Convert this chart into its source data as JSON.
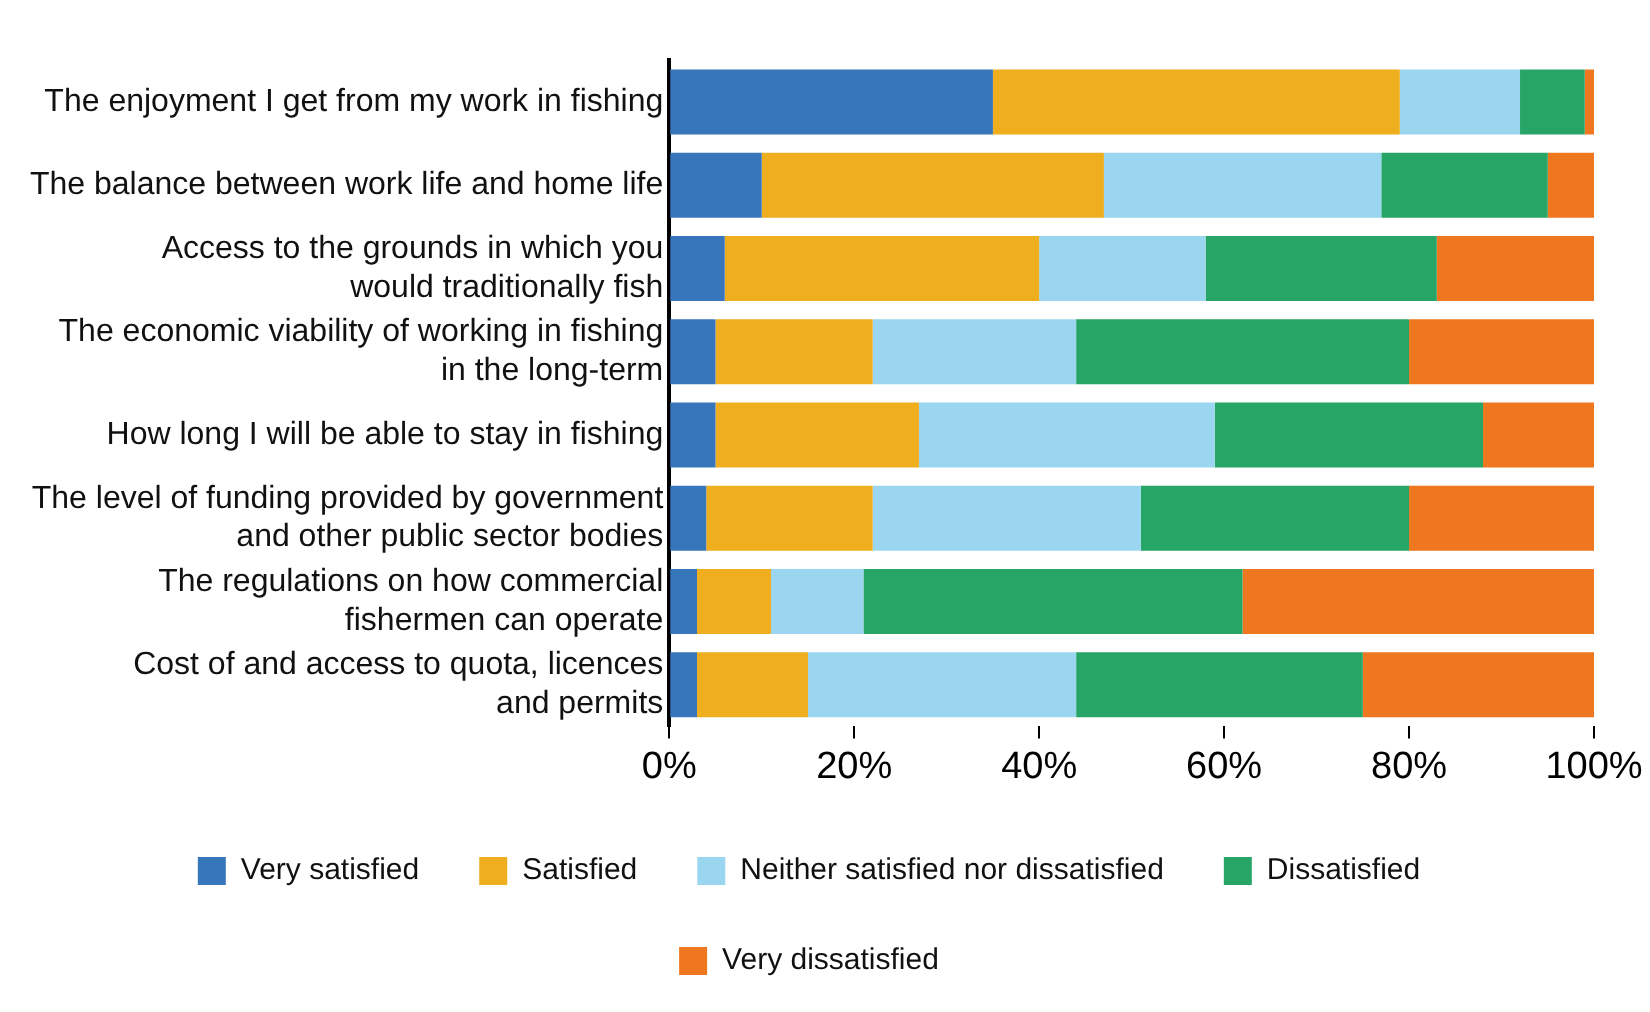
{
  "chart_data": {
    "type": "bar",
    "orientation": "horizontal",
    "stacked": true,
    "categories": [
      "The enjoyment I get from my work in fishing",
      "The balance between work life and home life",
      "Access to the grounds in which you\nwould traditionally fish",
      "The economic viability of working in fishing\nin the long-term",
      "How long I will be able to stay in fishing",
      "The level of funding provided by government\nand other public sector bodies",
      "The regulations on how commercial\nfishermen can operate",
      "Cost of and access to quota, licences\nand permits"
    ],
    "series": [
      {
        "name": "Very satisfied",
        "color": "#3776bb",
        "values": [
          35,
          10,
          6,
          5,
          5,
          4,
          3,
          3
        ]
      },
      {
        "name": "Satisfied",
        "color": "#eeae1e",
        "values": [
          44,
          37,
          34,
          17,
          22,
          18,
          8,
          12
        ]
      },
      {
        "name": "Neither satisfied nor dissatisfied",
        "color": "#9bd6f1",
        "values": [
          13,
          30,
          18,
          22,
          32,
          29,
          10,
          29
        ]
      },
      {
        "name": "Dissatisfied",
        "color": "#27a566",
        "values": [
          7,
          18,
          25,
          36,
          29,
          29,
          41,
          31
        ]
      },
      {
        "name": "Very dissatisfied",
        "color": "#ee771f",
        "values": [
          1,
          5,
          17,
          20,
          12,
          20,
          38,
          25
        ]
      }
    ],
    "xlim": [
      0,
      100
    ],
    "xticks": [
      {
        "value": 0,
        "label": "0%"
      },
      {
        "value": 20,
        "label": "20%"
      },
      {
        "value": 40,
        "label": "40%"
      },
      {
        "value": 60,
        "label": "60%"
      },
      {
        "value": 80,
        "label": "80%"
      },
      {
        "value": 100,
        "label": "100%"
      }
    ],
    "grid": false,
    "legend": "bottom"
  }
}
